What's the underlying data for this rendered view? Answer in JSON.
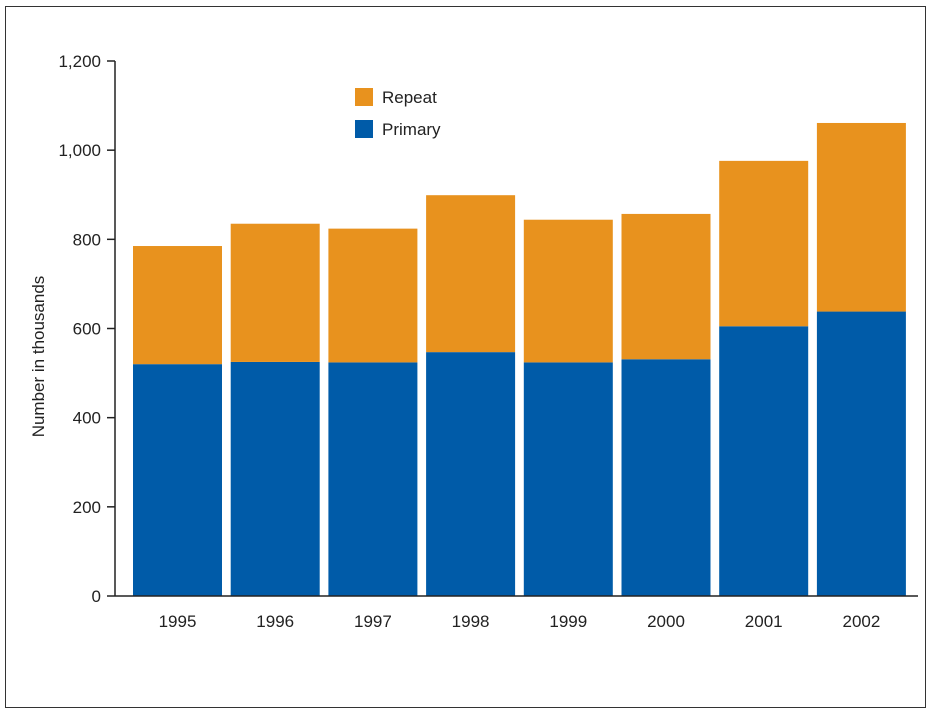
{
  "chart_data": {
    "type": "bar",
    "stacked": true,
    "categories": [
      "1995",
      "1996",
      "1997",
      "1998",
      "1999",
      "2000",
      "2001",
      "2002"
    ],
    "series": [
      {
        "name": "Primary",
        "color": "#005ba8",
        "values": [
          520,
          525,
          524,
          547,
          524,
          531,
          605,
          638
        ]
      },
      {
        "name": "Repeat",
        "color": "#e8921e",
        "values": [
          265,
          310,
          300,
          352,
          320,
          326,
          371,
          423
        ]
      }
    ],
    "title": "",
    "xlabel": "",
    "ylabel": "Number in thousands",
    "ylim": [
      0,
      1200
    ],
    "yticks": [
      0,
      200,
      400,
      600,
      800,
      1000,
      1200
    ],
    "ytick_labels": [
      "0",
      "200",
      "400",
      "600",
      "800",
      "1,000",
      "1,200"
    ],
    "grid": false,
    "legend": {
      "position": "top-center",
      "items": [
        {
          "label": "Repeat",
          "color": "#e8921e"
        },
        {
          "label": "Primary",
          "color": "#005ba8"
        }
      ]
    }
  }
}
